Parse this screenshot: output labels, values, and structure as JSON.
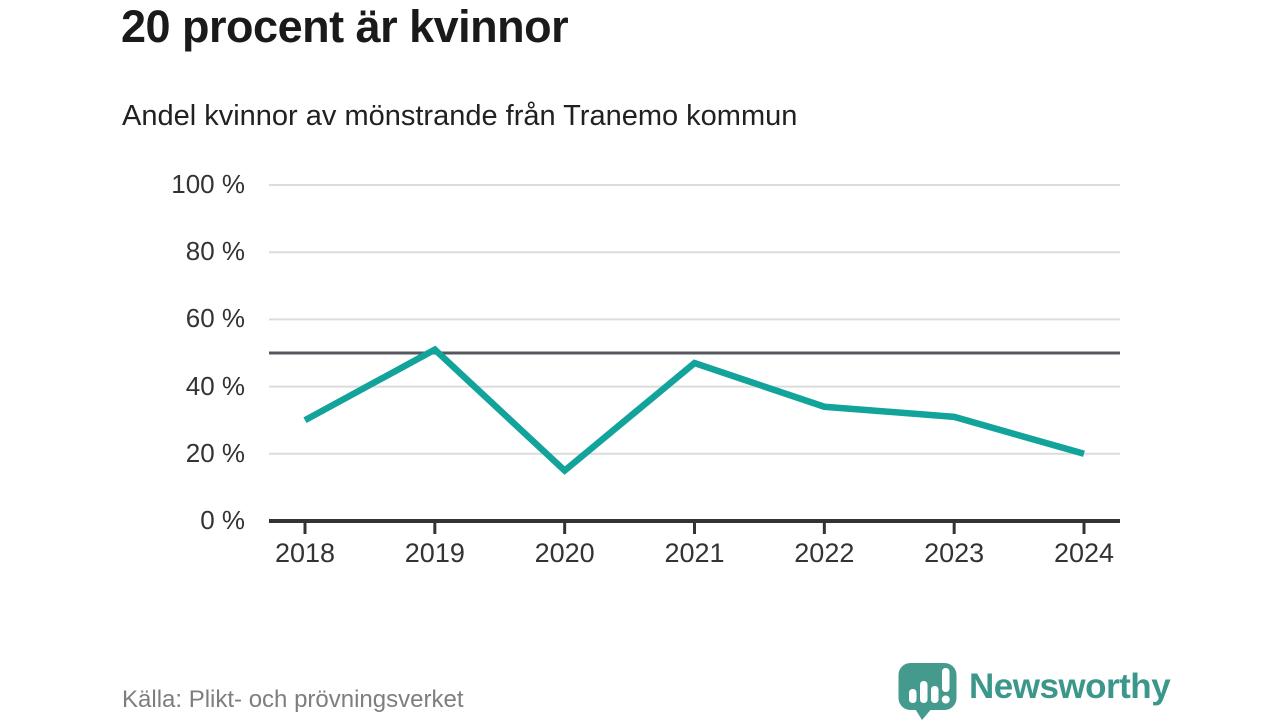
{
  "header": {
    "title": "20 procent är kvinnor",
    "subtitle": "Andel kvinnor av mönstrande från Tranemo kommun"
  },
  "chart_data": {
    "type": "line",
    "title": "20 procent är kvinnor",
    "subtitle": "Andel kvinnor av mönstrande från Tranemo kommun",
    "x": [
      2018,
      2019,
      2020,
      2021,
      2022,
      2023,
      2024
    ],
    "series": [
      {
        "name": "Andel kvinnor av mönstrande",
        "values": [
          30,
          51,
          15,
          47,
          34,
          31,
          20
        ]
      }
    ],
    "xlabel": "",
    "ylabel": "",
    "ylim": [
      0,
      100
    ],
    "yticks": [
      0,
      20,
      40,
      60,
      80,
      100
    ],
    "ytick_labels": [
      "0 %",
      "20 %",
      "40 %",
      "60 %",
      "80 %",
      "100 %"
    ],
    "reference_line": {
      "value": 50
    },
    "grid": true,
    "legend": "none",
    "line_color": "#12a39a",
    "grid_color": "#dcdcdc",
    "axis_color": "#333333",
    "reference_color": "#55595e",
    "tick_label_color": "#333333"
  },
  "footer": {
    "source": "Källa: Plikt- och prövningsverket",
    "brand": "Newsworthy",
    "brand_color": "#3c978b",
    "logo_bubble_color": "#449a8d"
  }
}
